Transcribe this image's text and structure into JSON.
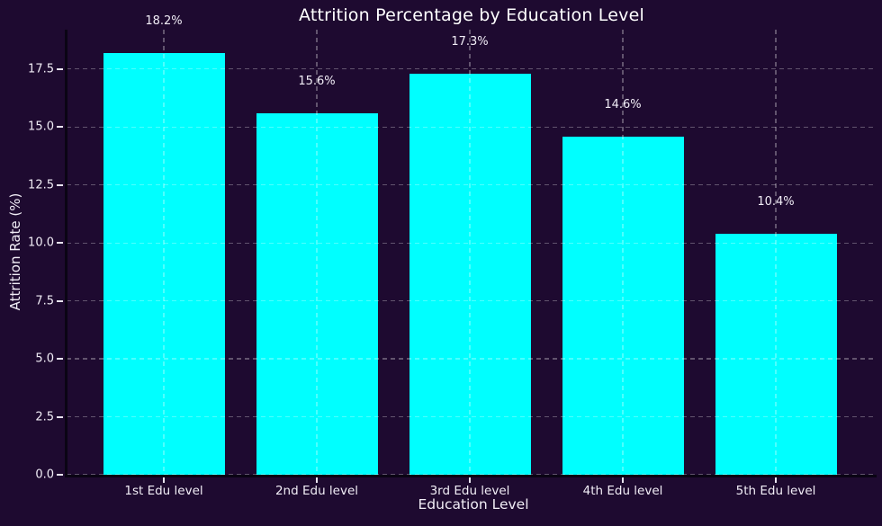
{
  "chart_data": {
    "type": "bar",
    "title": "Attrition Percentage by Education Level",
    "xlabel": "Education Level",
    "ylabel": "Attrition Rate (%)",
    "categories": [
      "1st Edu level",
      "2nd Edu level",
      "3rd Edu level",
      "4th Edu level",
      "5th Edu level"
    ],
    "values": [
      18.2,
      15.6,
      17.3,
      14.6,
      10.4
    ],
    "bar_labels": [
      "18.2%",
      "15.6%",
      "17.3%",
      "14.6%",
      "10.4%"
    ],
    "ylim": [
      0,
      19.2
    ],
    "ytick_values": [
      0.0,
      2.5,
      5.0,
      7.5,
      10.0,
      12.5,
      15.0,
      17.5
    ],
    "ytick_labels": [
      "0.0",
      "2.5",
      "5.0",
      "7.5",
      "10.0",
      "12.5",
      "15.0",
      "17.5"
    ],
    "grid": true,
    "grid_style": "dashed",
    "grid_above_bars": true,
    "legend_position": "none",
    "colors": {
      "background": "#1e0a30",
      "bar": "#00ffff",
      "grid": "rgba(255,255,255,0.30)",
      "text": "#f1edf6",
      "title": "#ffffff",
      "spine": "#0a0414"
    }
  }
}
